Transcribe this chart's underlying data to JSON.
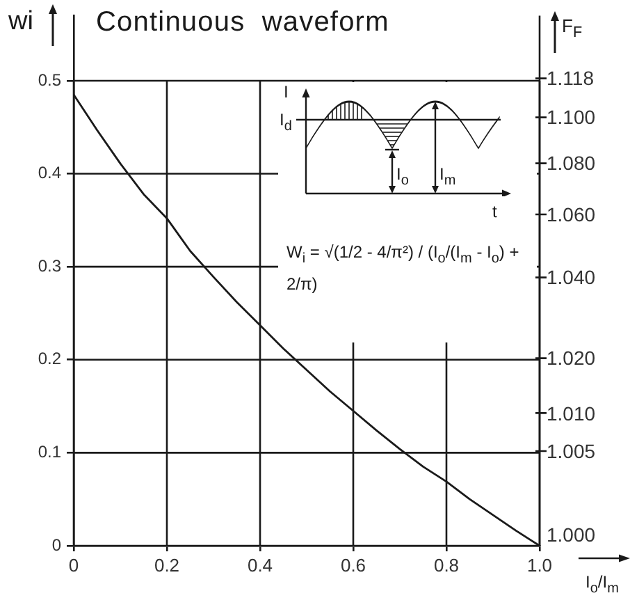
{
  "chart_data": {
    "type": "line",
    "title": "Continuous waveform",
    "xlabel": "I$_{o}$/I$_{m}$",
    "ylabel": "wi",
    "y2label": "F$_{F}$",
    "x": [
      0,
      0.05,
      0.1,
      0.15,
      0.2,
      0.25,
      0.3,
      0.35,
      0.4,
      0.45,
      0.5,
      0.55,
      0.6,
      0.65,
      0.7,
      0.75,
      0.8,
      0.85,
      0.9,
      0.95,
      1
    ],
    "values": [
      0.485,
      0.447,
      0.411,
      0.378,
      0.352,
      0.317,
      0.289,
      0.262,
      0.237,
      0.212,
      0.189,
      0.166,
      0.145,
      0.124,
      0.104,
      0.085,
      0.069,
      0.05,
      0.033,
      0.016,
      0
    ],
    "color": "#1a1a1a",
    "marker": "none",
    "grid": true,
    "xlim": [
      0,
      1
    ],
    "xticks": [
      0,
      0.2,
      0.4,
      0.6,
      0.8,
      {
        "value": 1,
        "label": "1.0"
      }
    ],
    "ylim": [
      0,
      0.57
    ],
    "yticks": [
      0,
      0.1,
      0.2,
      0.3,
      0.4,
      0.5
    ],
    "annotations": [
      "I",
      "I$_{d}$",
      "I$_{o}$",
      "I$_{m}$",
      "t",
      "W$_{i}$ = √(1/2 - 4/π²) / (I$_{o}$/(I$_{m}$ - I$_{o}$) + 2/π)",
      "1.000",
      "1.005",
      "1.010",
      "1.020",
      "1.040",
      "1.060",
      "1.080",
      "1.100",
      "1.118"
    ]
  }
}
